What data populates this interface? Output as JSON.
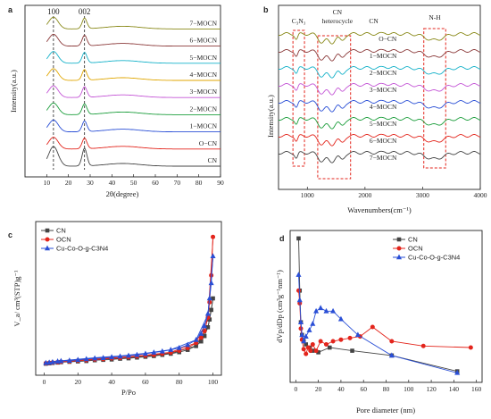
{
  "chart_data": [
    {
      "panel": "a",
      "type": "line",
      "xlabel": "2θ(degree)",
      "ylabel": "Intensity(a.u.)",
      "xlim": [
        0,
        90
      ],
      "xticks": [
        10,
        20,
        30,
        40,
        50,
        60,
        70,
        80,
        90
      ],
      "peaks": [
        {
          "label": "100",
          "x": 13.1
        },
        {
          "label": "002",
          "x": 27.4
        }
      ],
      "series": [
        {
          "name": "CN",
          "color": "#444444"
        },
        {
          "name": "O−CN",
          "color": "#e3251c"
        },
        {
          "name": "1−MOCN",
          "color": "#2a4fd6"
        },
        {
          "name": "2−MOCN",
          "color": "#1c9e3c"
        },
        {
          "name": "3−MOCN",
          "color": "#c455d6"
        },
        {
          "name": "4−MOCN",
          "color": "#e0a600"
        },
        {
          "name": "5−MOCN",
          "color": "#16b2c9"
        },
        {
          "name": "6−MOCN",
          "color": "#8c3b3b"
        },
        {
          "name": "7−MOCN",
          "color": "#8a8a1a"
        }
      ]
    },
    {
      "panel": "b",
      "type": "line",
      "xlabel": "Wavenumbers(cm⁻¹)",
      "ylabel": "Intensity(a.u.)",
      "xlim": [
        500,
        4000
      ],
      "xticks": [
        1000,
        2000,
        3000,
        4000
      ],
      "annotations": [
        "C₃N₃",
        "CN\nheterocycle",
        "CN",
        "N-H"
      ],
      "series": [
        {
          "name": "O−CN",
          "color": "#8a8a1a"
        },
        {
          "name": "1−MOCN",
          "color": "#8c3b3b"
        },
        {
          "name": "2−MOCN",
          "color": "#16b2c9"
        },
        {
          "name": "3−MOCN",
          "color": "#c455d6"
        },
        {
          "name": "4−MOCN",
          "color": "#2a4fd6"
        },
        {
          "name": "5−MOCN",
          "color": "#1c9e3c"
        },
        {
          "name": "6−MOCN",
          "color": "#e3251c"
        },
        {
          "name": "7−MOCN",
          "color": "#444444"
        }
      ]
    },
    {
      "panel": "c",
      "type": "line",
      "xlabel": "P/Po",
      "ylabel": "V_a/ cm³(STP)g⁻¹",
      "xlim": [
        0,
        100
      ],
      "xticks": [
        0,
        20,
        40,
        60,
        80,
        100
      ],
      "legend": "top-left",
      "series": [
        {
          "name": "CN",
          "color": "#444444",
          "marker": "square",
          "x": [
            1,
            3,
            5,
            8,
            10,
            15,
            20,
            25,
            30,
            35,
            40,
            45,
            50,
            55,
            60,
            65,
            70,
            75,
            80,
            85,
            90,
            93,
            95,
            97,
            98,
            99,
            100
          ],
          "y": [
            1,
            1.1,
            1.2,
            1.3,
            1.4,
            1.5,
            1.6,
            1.7,
            1.9,
            2.0,
            2.1,
            2.3,
            2.4,
            2.6,
            2.8,
            3.0,
            3.3,
            3.6,
            4.0,
            4.6,
            5.6,
            6.8,
            8.2,
            10.5,
            12.5,
            15,
            18
          ]
        },
        {
          "name": "OCN",
          "color": "#e3251c",
          "marker": "circle",
          "x": [
            1,
            3,
            5,
            8,
            10,
            15,
            20,
            25,
            30,
            35,
            40,
            45,
            50,
            55,
            60,
            65,
            70,
            75,
            80,
            85,
            90,
            93,
            95,
            97,
            98,
            99,
            100
          ],
          "y": [
            1.1,
            1.2,
            1.3,
            1.4,
            1.5,
            1.6,
            1.8,
            1.9,
            2.1,
            2.2,
            2.4,
            2.5,
            2.7,
            2.9,
            3.1,
            3.3,
            3.6,
            3.9,
            4.4,
            5.1,
            6.4,
            7.8,
            9.5,
            13,
            17,
            24,
            34
          ]
        },
        {
          "name": "Cu-Co-O-g-C3N4",
          "color": "#2a4fd6",
          "marker": "triangle",
          "x": [
            1,
            3,
            5,
            8,
            10,
            15,
            20,
            25,
            30,
            35,
            40,
            45,
            50,
            55,
            60,
            65,
            70,
            75,
            80,
            85,
            90,
            93,
            95,
            97,
            98,
            99,
            100
          ],
          "y": [
            1.2,
            1.3,
            1.4,
            1.6,
            1.7,
            1.8,
            2.0,
            2.2,
            2.4,
            2.5,
            2.7,
            2.9,
            3.1,
            3.3,
            3.6,
            3.9,
            4.2,
            4.6,
            5.1,
            5.9,
            7.2,
            8.8,
            10.8,
            14,
            18,
            22,
            29
          ]
        }
      ]
    },
    {
      "panel": "d",
      "type": "line",
      "xlabel": "Pore diameter (nm)",
      "ylabel": "dVp/dDp (cm³g⁻¹nm⁻¹)",
      "xlim": [
        -5,
        165
      ],
      "xticks": [
        0,
        20,
        40,
        60,
        80,
        100,
        120,
        140,
        160
      ],
      "legend": "top-right",
      "series": [
        {
          "name": "CN",
          "color": "#444444",
          "marker": "square",
          "x": [
            2.5,
            3.5,
            4.5,
            5.5,
            7,
            9,
            12,
            15,
            20,
            30,
            50,
            85,
            143
          ],
          "y": [
            91,
            58,
            38,
            30,
            26,
            24,
            22,
            20,
            19,
            22,
            20,
            17,
            7
          ]
        },
        {
          "name": "OCN",
          "color": "#e3251c",
          "marker": "circle",
          "x": [
            2.5,
            3.5,
            4.5,
            5.5,
            7,
            9,
            11,
            13,
            15,
            18,
            22,
            27,
            33,
            40,
            48,
            57,
            68,
            85,
            113,
            155
          ],
          "y": [
            58,
            50,
            34,
            27,
            21,
            18,
            22,
            20,
            24,
            20,
            26,
            24,
            26,
            27,
            28,
            29,
            35,
            26,
            23,
            22
          ]
        },
        {
          "name": "Cu-Co-O-g-C3N4",
          "color": "#2a4fd6",
          "marker": "triangle",
          "x": [
            2.5,
            3.5,
            4.5,
            5.5,
            7,
            9,
            12,
            15,
            18,
            22,
            27,
            33,
            40,
            55,
            85,
            143
          ],
          "y": [
            68,
            52,
            38,
            30,
            26,
            29,
            33,
            37,
            45,
            47,
            45,
            45,
            40,
            30,
            17,
            6
          ]
        }
      ]
    }
  ]
}
